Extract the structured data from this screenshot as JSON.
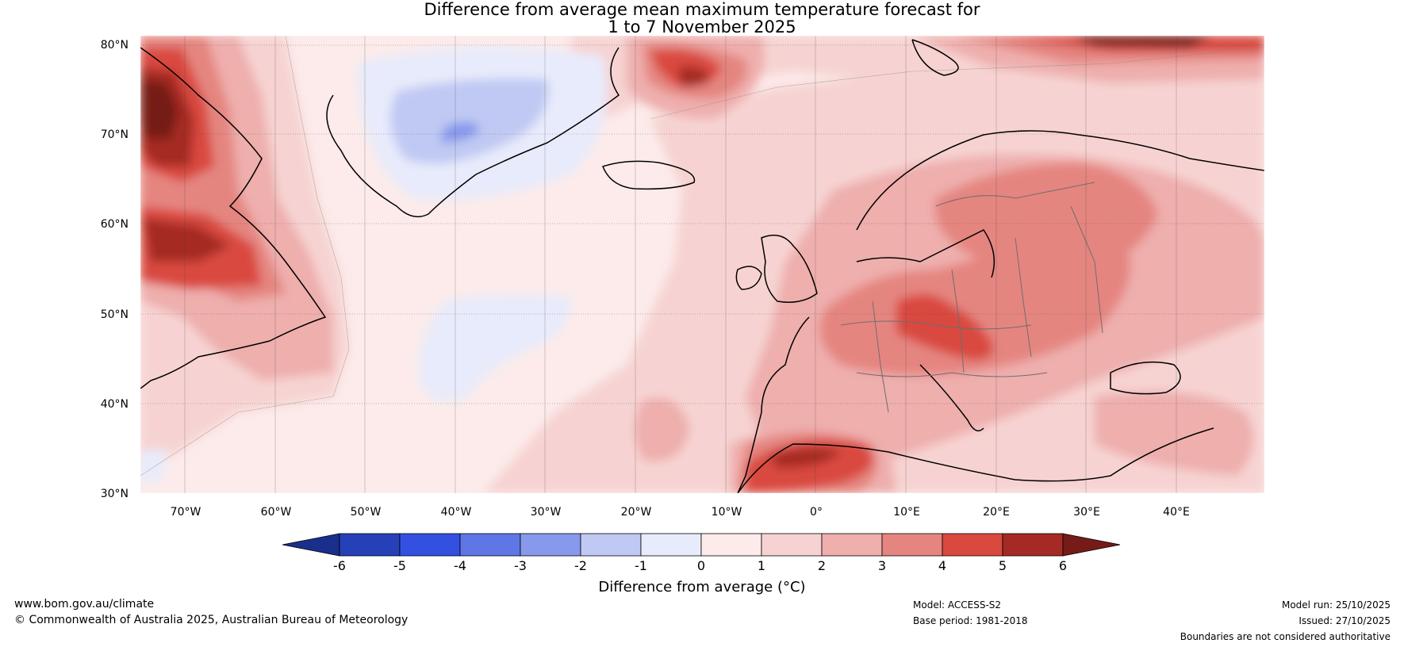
{
  "title_line1": "Difference from average mean maximum temperature forecast for",
  "title_line2": "1 to 7 November 2025",
  "lat_labels": [
    "80°N",
    "70°N",
    "60°N",
    "50°N",
    "40°N",
    "30°N"
  ],
  "lon_labels": [
    "70°W",
    "60°W",
    "50°W",
    "40°W",
    "30°W",
    "20°W",
    "10°W",
    "0°",
    "10°E",
    "20°E",
    "30°E",
    "40°E"
  ],
  "colorbar": {
    "ticks": [
      "-6",
      "-5",
      "-4",
      "-3",
      "-2",
      "-1",
      "0",
      "1",
      "2",
      "3",
      "4",
      "5",
      "6"
    ],
    "colors": [
      "#1a2f8c",
      "#2640b8",
      "#3350e0",
      "#5e76e6",
      "#8799ec",
      "#c0c9f3",
      "#e8ebfb",
      "#fcebea",
      "#f6d3d2",
      "#eeafad",
      "#e58580",
      "#d9493f",
      "#a52a24",
      "#761b18"
    ],
    "label": "Difference from average (°C)"
  },
  "footer": {
    "website": "www.bom.gov.au/climate",
    "copyright": "© Commonwealth of Australia 2025, Australian Bureau of Meteorology",
    "model": "Model: ACCESS-S2",
    "base_period": "Base period: 1981-2018",
    "model_run": "Model run: 25/10/2025",
    "issued": "Issued: 27/10/2025",
    "disclaimer": "Boundaries are not considered authoritative"
  }
}
